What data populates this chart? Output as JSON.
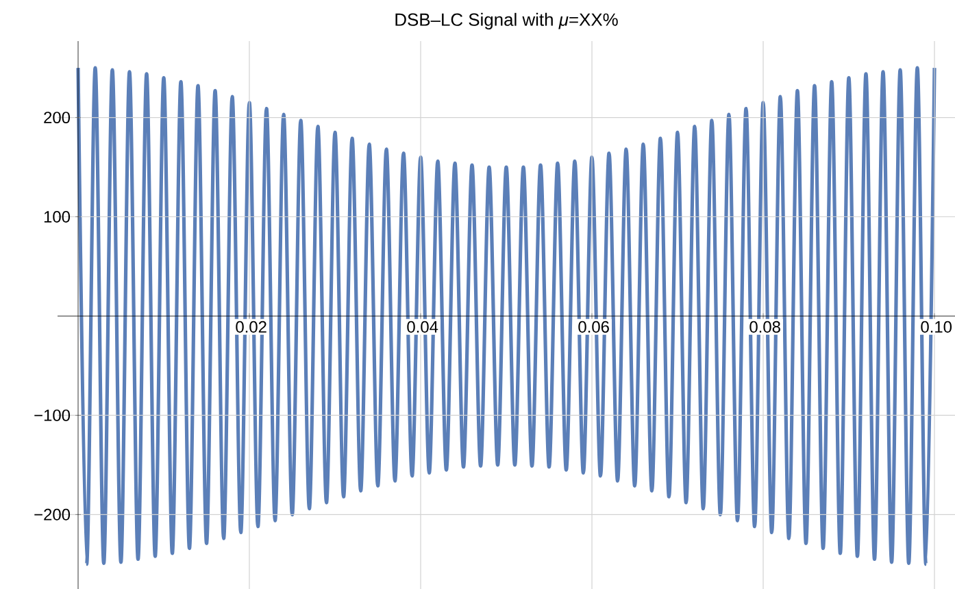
{
  "chart_data": {
    "type": "line",
    "title": "DSB–LC Signal with *μ*=XX%",
    "x": [
      0,
      0.001,
      0.002,
      0.003,
      0.004,
      0.005,
      0.006,
      0.007,
      0.008,
      0.009,
      0.01,
      0.011,
      0.012,
      0.013,
      0.014,
      0.015,
      0.016,
      0.017,
      0.018,
      0.019,
      0.02,
      0.021,
      0.022,
      0.023,
      0.024,
      0.025,
      0.026,
      0.027,
      0.028,
      0.029,
      0.03,
      0.031,
      0.032,
      0.033,
      0.034,
      0.035,
      0.036,
      0.037,
      0.038,
      0.039,
      0.04,
      0.041,
      0.042,
      0.043,
      0.044,
      0.045,
      0.046,
      0.047,
      0.048,
      0.049,
      0.05,
      0.051,
      0.052,
      0.053,
      0.054,
      0.055,
      0.056,
      0.057,
      0.058,
      0.059,
      0.06,
      0.061,
      0.062,
      0.063,
      0.064,
      0.065,
      0.066,
      0.067,
      0.068,
      0.069,
      0.07,
      0.071,
      0.072,
      0.073,
      0.074,
      0.075,
      0.076,
      0.077,
      0.078,
      0.079,
      0.08,
      0.081,
      0.082,
      0.083,
      0.084,
      0.085,
      0.086,
      0.087,
      0.088,
      0.089,
      0.09,
      0.091,
      0.092,
      0.093,
      0.094,
      0.095,
      0.096,
      0.097,
      0.098,
      0.099,
      0.1
    ],
    "series": [
      {
        "color": "#5b7fb8",
        "values": [
          250,
          -250,
          250,
          -249,
          248,
          -248,
          246,
          -245,
          244,
          -242,
          240,
          -239,
          236,
          -234,
          232,
          -229,
          227,
          -224,
          221,
          -218,
          215,
          -212,
          209,
          -206,
          203,
          -200,
          197,
          -194,
          191,
          -188,
          185,
          -182,
          179,
          -176,
          173,
          -171,
          168,
          -166,
          164,
          -161,
          160,
          -158,
          156,
          -155,
          154,
          -152,
          152,
          -151,
          150,
          -150,
          150,
          -150,
          150,
          -151,
          152,
          -152,
          154,
          -155,
          156,
          -158,
          160,
          -161,
          164,
          -166,
          168,
          -171,
          173,
          -176,
          179,
          -182,
          185,
          -188,
          191,
          -194,
          197,
          -200,
          203,
          -206,
          209,
          -212,
          215,
          -218,
          221,
          -224,
          227,
          -229,
          232,
          -234,
          236,
          -239,
          240,
          -242,
          244,
          -245,
          246,
          -248,
          248,
          -249,
          250,
          -250,
          250
        ]
      }
    ],
    "xlim": [
      -0.0024,
      0.1024
    ],
    "ylim": [
      -275,
      277
    ],
    "xticks": [
      0.02,
      0.04,
      0.06,
      0.08,
      {
        "value": 0.1,
        "label": "0.10"
      }
    ],
    "yticks": [
      {
        "value": -200,
        "label": "−200"
      },
      {
        "value": -100,
        "label": "−100"
      },
      100,
      200
    ],
    "grid": true
  }
}
